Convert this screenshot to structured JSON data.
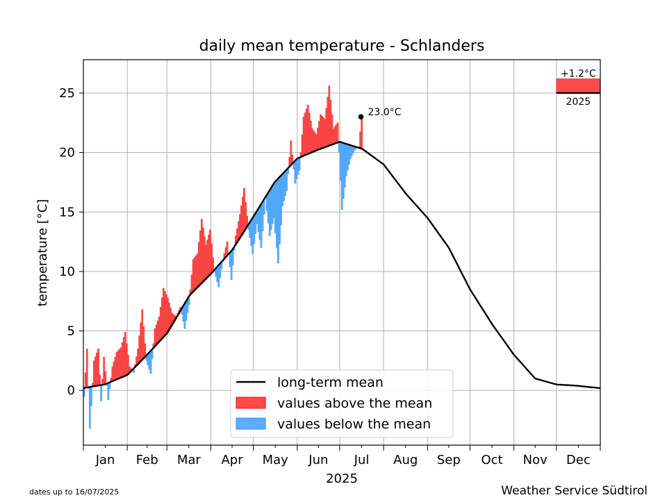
{
  "chart_data": {
    "type": "bar",
    "title": "daily mean temperature - Schlanders",
    "ylabel": "temperature [°C]",
    "xlabel": "2025",
    "ylim": [
      -4.6,
      27.8
    ],
    "yticks": [
      0,
      5,
      10,
      15,
      20,
      25
    ],
    "months": [
      "Jan",
      "Feb",
      "Mar",
      "Apr",
      "May",
      "Jun",
      "Jul",
      "Aug",
      "Sep",
      "Oct",
      "Nov",
      "Dec"
    ],
    "grid": true,
    "legend": {
      "position": "lower-center",
      "entries": [
        "long-term mean",
        "values above the mean",
        "values below the mean"
      ]
    },
    "colors": {
      "above": "#ff4a4a",
      "below": "#5aaefc",
      "mean": "#000000"
    },
    "long_term_mean": {
      "day": [
        0,
        15,
        31,
        45,
        59,
        75,
        90,
        105,
        120,
        135,
        151,
        165,
        181,
        197,
        212,
        228,
        243,
        258,
        273,
        289,
        304,
        319,
        334,
        348,
        364
      ],
      "value": [
        0.2,
        0.5,
        1.3,
        3.0,
        4.8,
        8.0,
        9.8,
        11.8,
        14.6,
        17.5,
        19.5,
        20.2,
        20.9,
        20.3,
        19.0,
        16.5,
        14.5,
        12.0,
        8.5,
        5.5,
        3.0,
        1.0,
        0.5,
        0.4,
        0.2
      ]
    },
    "daily": {
      "day": [
        0,
        2,
        4,
        7,
        10,
        12,
        14,
        17,
        20,
        23,
        26,
        29,
        32,
        35,
        38,
        41,
        44,
        47,
        50,
        53,
        56,
        59,
        62,
        65,
        68,
        71,
        74,
        77,
        80,
        83,
        86,
        89,
        92,
        95,
        98,
        101,
        104,
        107,
        110,
        113,
        116,
        119,
        122,
        125,
        128,
        131,
        134,
        137,
        140,
        143,
        146,
        149,
        152,
        155,
        158,
        161,
        164,
        167,
        170,
        173,
        176,
        179,
        182,
        185,
        188,
        191,
        194,
        196
      ],
      "value": [
        -0.5,
        3.5,
        -3.2,
        2.5,
        3.5,
        -0.9,
        2.8,
        -0.8,
        2.0,
        3.2,
        3.6,
        4.9,
        2.0,
        1.5,
        3.5,
        6.8,
        2.5,
        1.4,
        5.2,
        6.2,
        8.6,
        7.8,
        6.5,
        6.2,
        7.0,
        5.2,
        7.2,
        11.0,
        11.5,
        14.4,
        12.2,
        13.5,
        10.0,
        8.7,
        11.0,
        12.5,
        9.3,
        13.0,
        14.8,
        17.0,
        13.5,
        11.5,
        14.0,
        12.0,
        16.2,
        13.0,
        14.5,
        10.7,
        15.5,
        16.8,
        21.0,
        17.4,
        18.5,
        23.0,
        24.0,
        22.0,
        21.5,
        23.2,
        22.8,
        25.6,
        22.0,
        22.5,
        15.2,
        18.0,
        19.5,
        20.2,
        20.5,
        23.0
      ]
    },
    "annotations": {
      "last_value": "23.0°C",
      "anomaly_value": "+1.2°C",
      "anomaly_year": "2025",
      "anomaly": 1.2,
      "dates_note": "dates up to 16/07/2025",
      "credit": "Weather Service Südtirol"
    }
  }
}
